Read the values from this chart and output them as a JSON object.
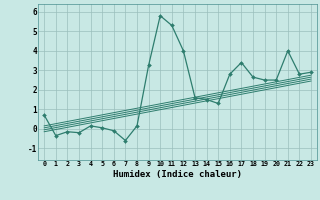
{
  "xlabel": "Humidex (Indice chaleur)",
  "xlim": [
    -0.5,
    23.5
  ],
  "ylim": [
    -1.6,
    6.4
  ],
  "xticks": [
    0,
    1,
    2,
    3,
    4,
    5,
    6,
    7,
    8,
    9,
    10,
    11,
    12,
    13,
    14,
    15,
    16,
    17,
    18,
    19,
    20,
    21,
    22,
    23
  ],
  "yticks": [
    -1,
    0,
    1,
    2,
    3,
    4,
    5,
    6
  ],
  "bg_color": "#c8e8e4",
  "grid_color": "#9bbfbc",
  "line_color": "#2e7d6e",
  "main_x": [
    0,
    1,
    2,
    3,
    4,
    5,
    6,
    7,
    8,
    9,
    10,
    11,
    12,
    13,
    14,
    15,
    16,
    17,
    18,
    19,
    20,
    21,
    22,
    23
  ],
  "main_y": [
    0.7,
    -0.35,
    -0.15,
    -0.2,
    0.15,
    0.05,
    -0.1,
    -0.6,
    0.15,
    3.25,
    5.8,
    5.3,
    4.0,
    1.6,
    1.5,
    1.3,
    2.8,
    3.4,
    2.65,
    2.5,
    2.5,
    4.0,
    2.8,
    2.9
  ],
  "trend_lines": [
    {
      "x": [
        0,
        23
      ],
      "y": [
        -0.15,
        2.45
      ]
    },
    {
      "x": [
        0,
        23
      ],
      "y": [
        -0.05,
        2.55
      ]
    },
    {
      "x": [
        0,
        23
      ],
      "y": [
        0.05,
        2.65
      ]
    },
    {
      "x": [
        0,
        23
      ],
      "y": [
        0.15,
        2.75
      ]
    }
  ]
}
